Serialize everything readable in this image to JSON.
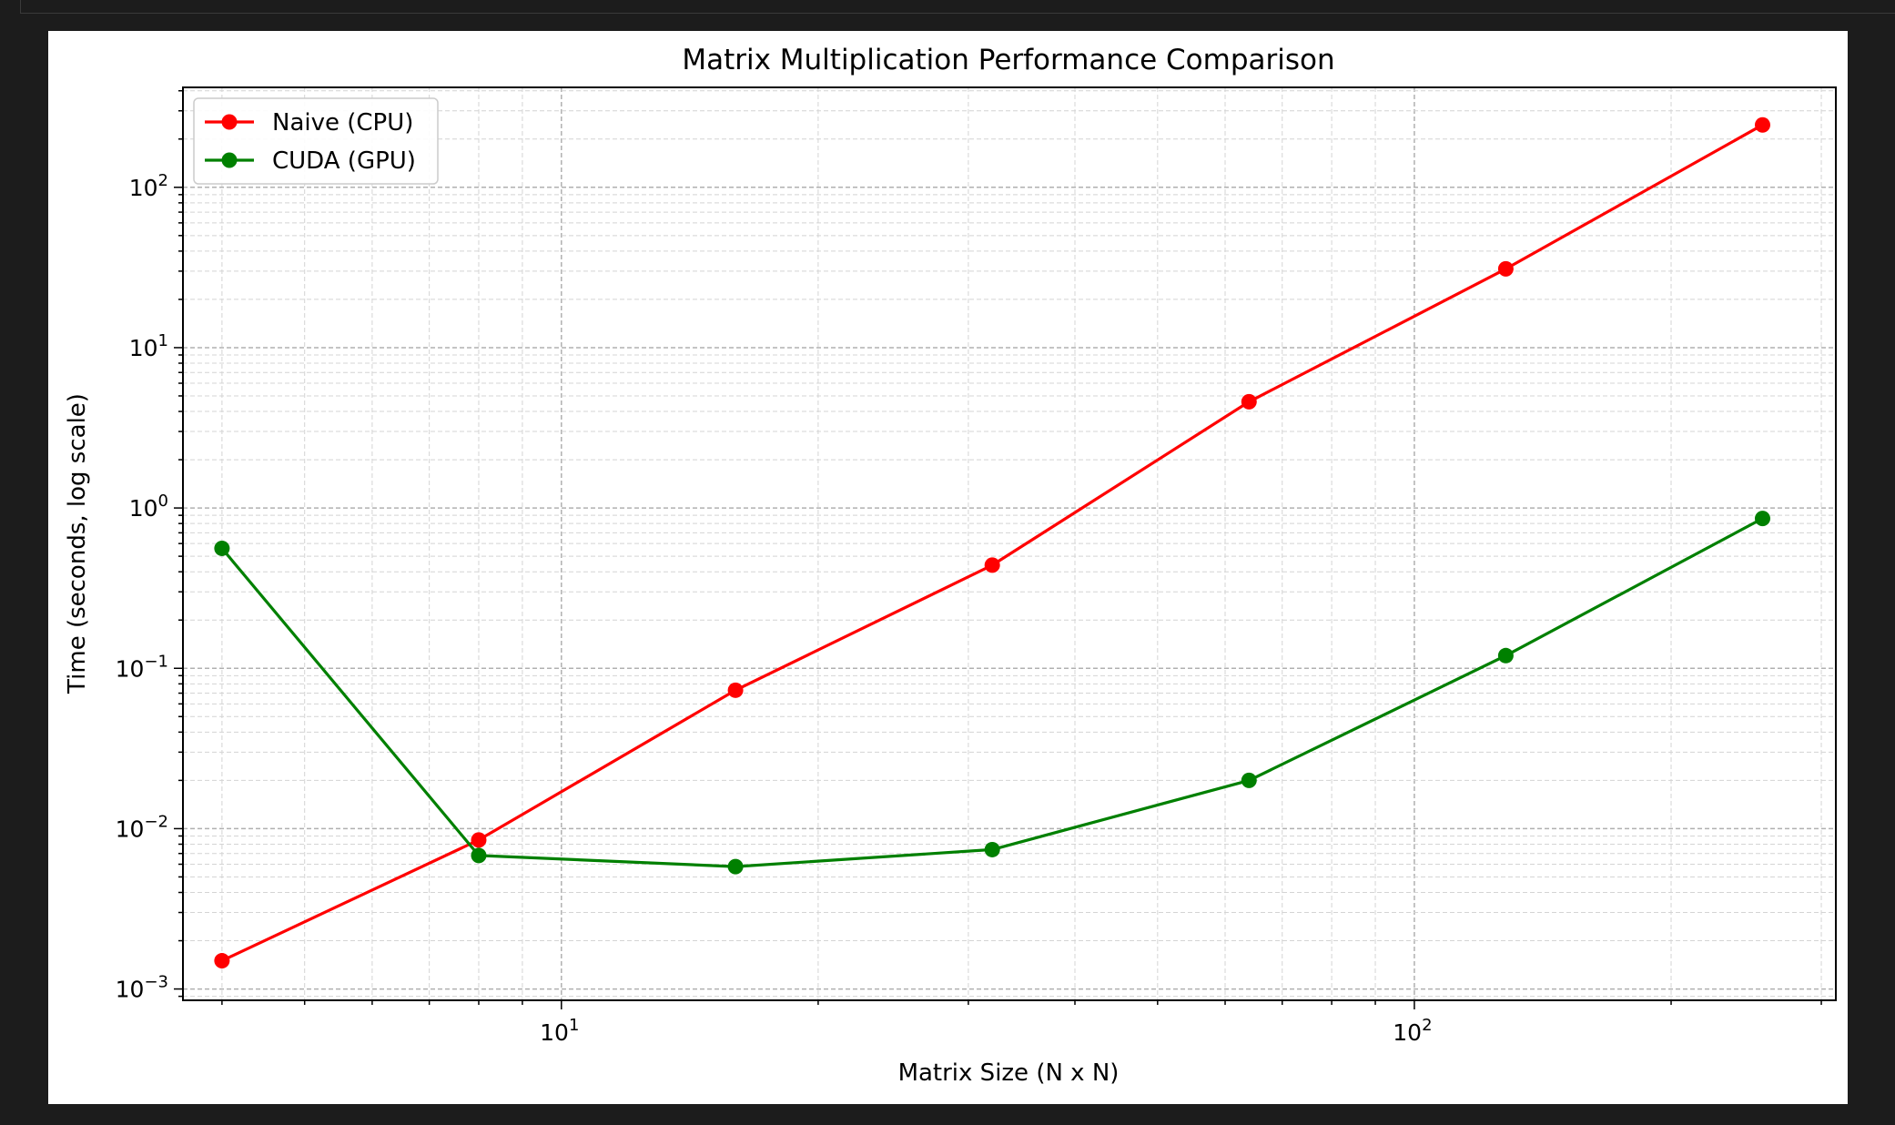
{
  "figure": {
    "background": "#ffffff",
    "page_background": "#1c1c1c"
  },
  "chart_data": {
    "type": "line",
    "title": "Matrix Multiplication Performance Comparison",
    "xlabel": "Matrix Size (N x N)",
    "ylabel": "Time (seconds, log scale)",
    "xscale": "log",
    "yscale": "log",
    "xlim": [
      3.6,
      312
    ],
    "ylim": [
      0.00085,
      420
    ],
    "grid": true,
    "legend_position": "top-left",
    "x": [
      4,
      8,
      16,
      32,
      64,
      128,
      256
    ],
    "x_ticks": [
      {
        "base": "10",
        "exp": "1",
        "value": 10
      },
      {
        "base": "10",
        "exp": "2",
        "value": 100
      }
    ],
    "y_ticks": [
      {
        "base": "10",
        "exp": "−3",
        "value": 0.001
      },
      {
        "base": "10",
        "exp": "−2",
        "value": 0.01
      },
      {
        "base": "10",
        "exp": "−1",
        "value": 0.1
      },
      {
        "base": "10",
        "exp": "0",
        "value": 1
      },
      {
        "base": "10",
        "exp": "1",
        "value": 10
      },
      {
        "base": "10",
        "exp": "2",
        "value": 100
      }
    ],
    "series": [
      {
        "name": "Naive (CPU)",
        "color": "#ff0000",
        "marker": "circle",
        "values": [
          0.0015,
          0.0085,
          0.073,
          0.44,
          4.6,
          31,
          245
        ]
      },
      {
        "name": "CUDA (GPU)",
        "color": "#008000",
        "marker": "circle",
        "values": [
          0.56,
          0.0068,
          0.0058,
          0.0074,
          0.02,
          0.12,
          0.86
        ]
      }
    ]
  }
}
